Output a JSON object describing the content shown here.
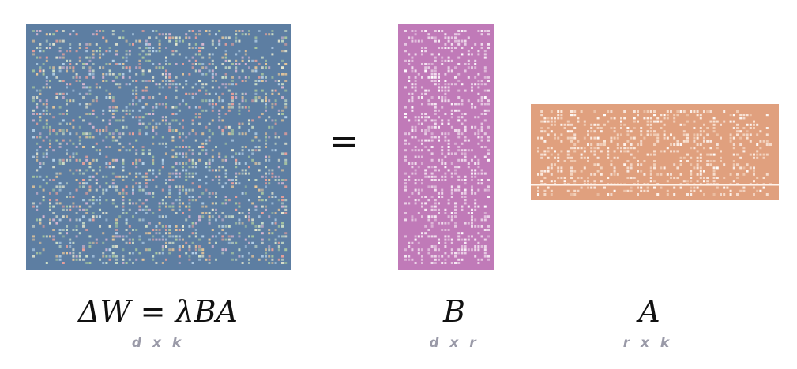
{
  "equation": {
    "equals_sign": "=",
    "main_formula": "ΔW = λBA",
    "b_label": "B",
    "a_label": "A"
  },
  "dimensions": {
    "w": "d x k",
    "b": "d x r",
    "a": "r x k"
  },
  "colors": {
    "w_matrix": "#5d7ea2",
    "b_matrix": "#c07ab8",
    "a_matrix": "#e0a07e",
    "dim_text": "#9a9aa8"
  }
}
